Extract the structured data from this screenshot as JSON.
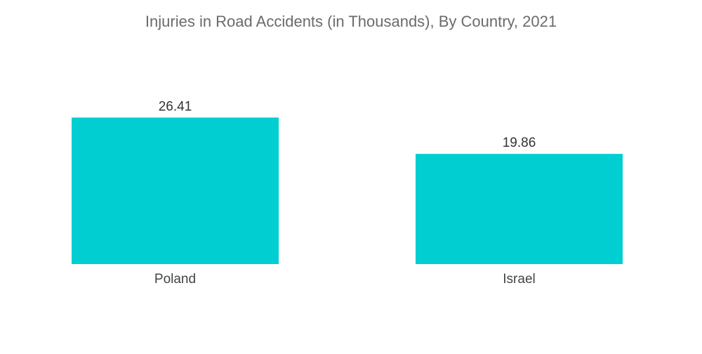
{
  "chart_data": {
    "type": "bar",
    "title": "Injuries in Road Accidents (in Thousands), By Country, 2021",
    "categories": [
      "Poland",
      "Israel"
    ],
    "values": [
      26.41,
      19.86
    ],
    "data_labels": [
      "26.41",
      "19.86"
    ],
    "xlabel": "",
    "ylabel": "",
    "grid": false,
    "legend": "none",
    "bar_color": "#00CED1"
  }
}
